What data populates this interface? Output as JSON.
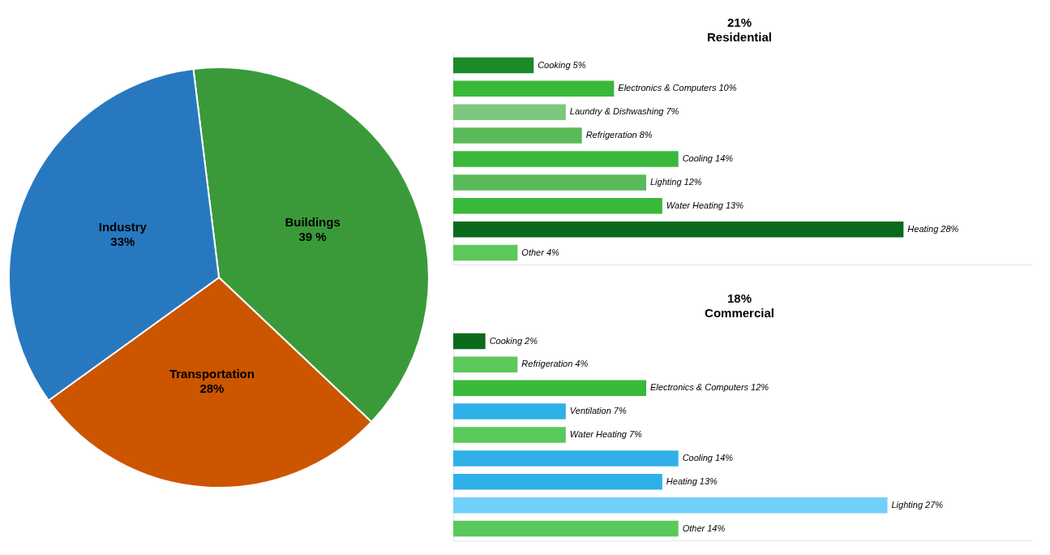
{
  "chart_data": [
    {
      "type": "pie",
      "values": [
        39,
        28,
        33
      ],
      "value_labels": [
        "Buildings\n39 %",
        "Transportation\n28%",
        "Industry\n33%"
      ],
      "colors": [
        "#3a9a3a",
        "#cc5500",
        "#2878c0"
      ],
      "data_labels": true
    },
    {
      "type": "bar",
      "title": "21%\nResidential",
      "orientation": "horizontal",
      "values": [
        5,
        10,
        7,
        8,
        14,
        12,
        13,
        28,
        4
      ],
      "value_labels": [
        "Cooking 5%",
        "Electronics & Computers 10%",
        "Laundry & Dishwashing 7%",
        "Refrigeration 8%",
        "Cooling 14%",
        "Lighting 12%",
        "Water Heating 13%",
        "Heating 28%",
        "Other 4%"
      ],
      "colors": [
        "#1a8a2a",
        "#3ab83a",
        "#7dc87d",
        "#5aba5a",
        "#3ab83a",
        "#5aba5a",
        "#3ab83a",
        "#0a6a1a",
        "#5ac85a"
      ],
      "xlim": [
        0,
        36
      ],
      "data_labels": true,
      "tick_labels": false,
      "grid": false
    },
    {
      "type": "bar",
      "title": "18%\nCommercial",
      "orientation": "horizontal",
      "values": [
        2,
        4,
        12,
        7,
        7,
        14,
        13,
        27,
        14
      ],
      "value_labels": [
        "Cooking 2%",
        "Refrigeration 4%",
        "Electronics & Computers 12%",
        "Ventilation 7%",
        "Water Heating 7%",
        "Cooling 14%",
        "Heating 13%",
        "Lighting 27%",
        "Other 14%"
      ],
      "colors": [
        "#0a6a1a",
        "#5ac85a",
        "#3ab83a",
        "#30b0e8",
        "#5ac85a",
        "#30b0e8",
        "#30b0e8",
        "#70d0f8",
        "#5ac85a"
      ],
      "xlim": [
        0,
        36
      ],
      "data_labels": true,
      "tick_labels": false,
      "grid": false
    }
  ]
}
